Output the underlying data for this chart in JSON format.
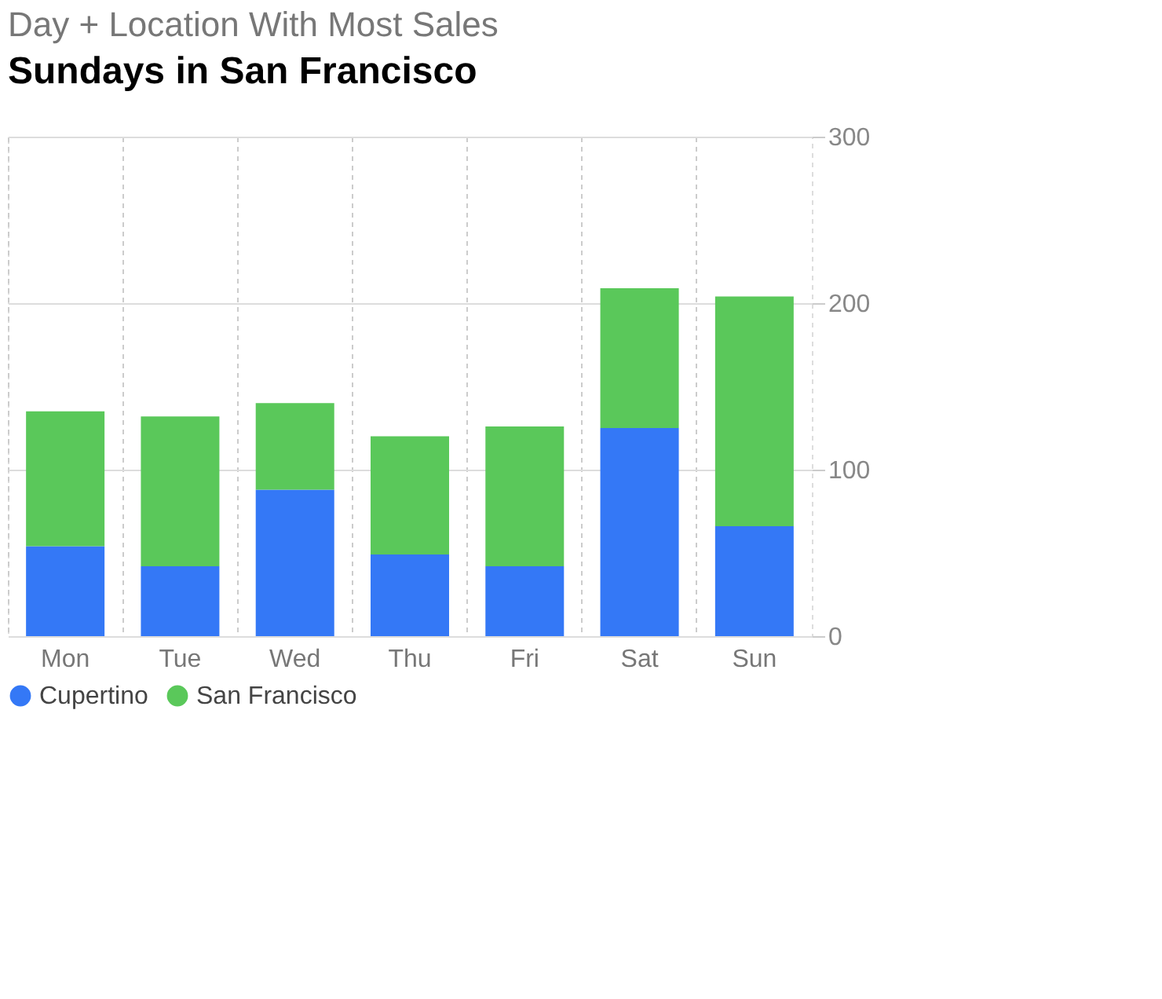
{
  "chart_data": {
    "type": "bar",
    "title": "Sundays in San Francisco",
    "subtitle": "Day + Location With Most Sales",
    "categories": [
      "Mon",
      "Tue",
      "Wed",
      "Thu",
      "Fri",
      "Sat",
      "Sun"
    ],
    "series": [
      {
        "name": "Cupertino",
        "color": "#3478f6",
        "values": [
          54,
          42,
          88,
          49,
          42,
          125,
          66
        ]
      },
      {
        "name": "San Francisco",
        "color": "#5ac85a",
        "values": [
          81,
          90,
          52,
          71,
          84,
          84,
          138
        ]
      }
    ],
    "stacked": true,
    "ylim": [
      0,
      300
    ],
    "yticks": [
      0,
      100,
      200,
      300
    ],
    "grid": true,
    "legend": "bottom left"
  }
}
